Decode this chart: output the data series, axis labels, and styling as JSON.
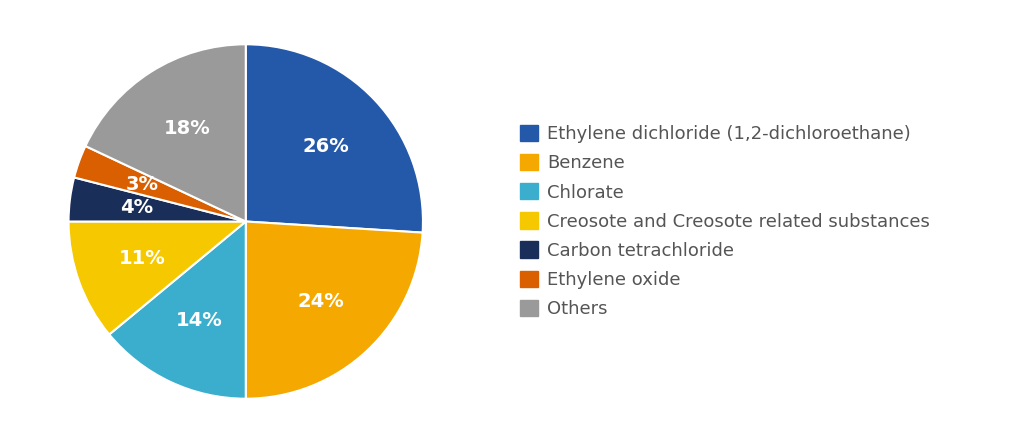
{
  "labels": [
    "Ethylene dichloride (1,2-dichloroethane)",
    "Benzene",
    "Chlorate",
    "Creosote and Creosote related substances",
    "Carbon tetrachloride",
    "Ethylene oxide",
    "Others"
  ],
  "values": [
    26,
    24,
    14,
    11,
    4,
    3,
    18
  ],
  "colors": [
    "#2458a8",
    "#f5a800",
    "#3aaecc",
    "#f5c800",
    "#1a2e5a",
    "#d95f00",
    "#9a9a9a"
  ],
  "pct_labels": [
    "26%",
    "24%",
    "14%",
    "11%",
    "4%",
    "3%",
    "18%"
  ],
  "pct_label_color": "white",
  "background_color": "#ffffff",
  "legend_text_color": "#555555",
  "legend_fontsize": 13,
  "pct_fontsize": 14,
  "startangle": 90
}
